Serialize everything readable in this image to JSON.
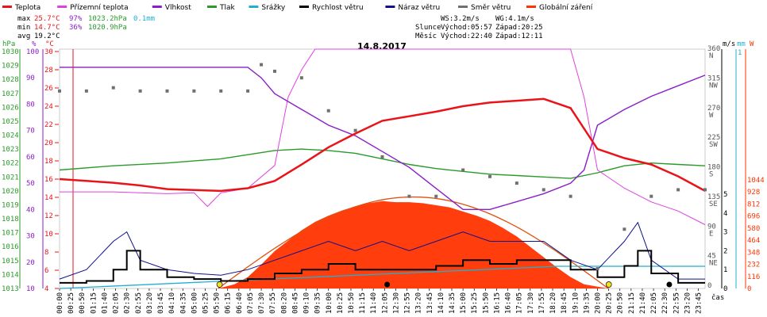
{
  "title": "14.8.2017",
  "legend": [
    {
      "label": "Teplota",
      "color": "#e8141a"
    },
    {
      "label": "Přízemní teplota",
      "color": "#e040e0"
    },
    {
      "label": "Vlhkost",
      "color": "#8a1ec8"
    },
    {
      "label": "Tlak",
      "color": "#2a9a2a"
    },
    {
      "label": "Srážky",
      "color": "#20b0d0"
    },
    {
      "label": "Rychlost větru",
      "color": "#000000"
    },
    {
      "label": "Náraz větru",
      "color": "#10108a"
    },
    {
      "label": "Směr větru",
      "color": "#707070"
    },
    {
      "label": "Globální záření",
      "color": "#ff3300"
    }
  ],
  "stats": {
    "max_label": "max",
    "max_temp": "25.7°C",
    "max_hum": "97%",
    "max_press": "1023.2hPa",
    "max_rain": "0.1mm",
    "min_label": "min",
    "min_temp": "14.7°C",
    "min_hum": "36%",
    "min_press": "1020.9hPa",
    "avg_label": "avg",
    "avg_temp": "19.2°C"
  },
  "astro": {
    "ws": "WS:3.2m/s",
    "wg": "WG:4.1m/s",
    "sun_label": "Slunce",
    "sunrise": "Východ:05:57",
    "sunset": "Západ:20:25",
    "moon_label": "Měsíc",
    "moonrise": "Východ:22:40",
    "moonset": "Západ:12:11"
  },
  "axes": {
    "hpa_unit": "hPa",
    "pct_unit": "%",
    "c_unit": "°C",
    "ms_unit": "m/s",
    "mm_unit": "mm",
    "w_unit": "W",
    "time_unit": "čas",
    "hpa_ticks": [
      "1030",
      "1029",
      "1028",
      "1027",
      "1026",
      "1025",
      "1024",
      "1023",
      "1022",
      "1021",
      "1020",
      "1019",
      "1018",
      "1017",
      "1016",
      "1015",
      "1014",
      "1013"
    ],
    "pct_ticks": [
      "100",
      "90",
      "80",
      "70",
      "60",
      "50",
      "40",
      "30",
      "20",
      "10"
    ],
    "c_ticks": [
      "30",
      "28",
      "26",
      "24",
      "22",
      "20",
      "18",
      "16",
      "14",
      "12",
      "10",
      "8",
      "6",
      "4"
    ],
    "dir_ticks": [
      [
        "360",
        "N"
      ],
      [
        "315",
        "NW"
      ],
      [
        "270",
        "W"
      ],
      [
        "225",
        "SW"
      ],
      [
        "180",
        "S"
      ],
      [
        "135",
        "SE"
      ],
      [
        "90",
        "E"
      ],
      [
        "45",
        "NE"
      ],
      [
        "0",
        ""
      ]
    ],
    "ms_ticks": [
      "5",
      "4",
      "3",
      "2",
      "1",
      "0"
    ],
    "mm_ticks": [
      "1"
    ],
    "w_ticks": [
      "1044",
      "928",
      "812",
      "696",
      "580",
      "464",
      "348",
      "232",
      "116",
      "0"
    ],
    "time_ticks": [
      "00:00",
      "00:25",
      "00:50",
      "01:15",
      "01:40",
      "02:05",
      "02:30",
      "02:55",
      "03:20",
      "03:45",
      "04:10",
      "04:35",
      "05:00",
      "05:25",
      "05:50",
      "06:15",
      "06:40",
      "07:05",
      "07:30",
      "07:55",
      "08:20",
      "08:45",
      "09:10",
      "09:35",
      "10:00",
      "10:25",
      "10:50",
      "11:15",
      "11:40",
      "12:05",
      "12:30",
      "12:55",
      "13:20",
      "13:45",
      "14:10",
      "14:35",
      "15:00",
      "15:25",
      "15:50",
      "16:15",
      "16:40",
      "17:05",
      "17:30",
      "17:55",
      "18:20",
      "18:45",
      "19:10",
      "19:35",
      "20:00",
      "20:25",
      "20:50",
      "21:15",
      "21:40",
      "22:05",
      "22:30",
      "22:55",
      "23:20",
      "23:45"
    ]
  },
  "chart_data": {
    "type": "line",
    "title": "14.8.2017",
    "x_range": [
      "00:00",
      "24:00"
    ],
    "series": [
      {
        "name": "Teplota",
        "unit": "°C",
        "x": [
          0,
          1,
          2,
          3,
          4,
          5,
          6,
          7,
          8,
          9,
          10,
          11,
          12,
          13,
          14,
          15,
          16,
          17,
          18,
          19,
          20,
          21,
          22,
          23,
          24
        ],
        "values": [
          16.0,
          15.8,
          15.6,
          15.3,
          14.9,
          14.8,
          14.7,
          15.0,
          15.8,
          17.6,
          19.5,
          21.0,
          22.4,
          22.9,
          23.4,
          24.0,
          24.4,
          24.6,
          24.8,
          23.8,
          19.3,
          18.3,
          17.6,
          16.3,
          14.7
        ]
      },
      {
        "name": "Přízemní teplota",
        "unit": "°C",
        "x": [
          0,
          1,
          2,
          3,
          4,
          5,
          5.5,
          6,
          7,
          8,
          8.5,
          9,
          9.5,
          10,
          11,
          12,
          13,
          14,
          15,
          16,
          17,
          18,
          19,
          19.5,
          20,
          21,
          22,
          23,
          24
        ],
        "values": [
          14.6,
          14.6,
          14.6,
          14.5,
          14.4,
          14.5,
          13.0,
          14.5,
          15.0,
          17.5,
          25.0,
          28.0,
          31.5,
          31.5,
          31.5,
          31.5,
          31.5,
          31.5,
          31.5,
          31.5,
          31.5,
          31.5,
          31.0,
          25.0,
          17.0,
          15.0,
          13.5,
          12.5,
          11.0
        ]
      },
      {
        "name": "Vlhkost",
        "unit": "%",
        "x": [
          0,
          1,
          2,
          3,
          4,
          5,
          6,
          7,
          7.5,
          8,
          9,
          10,
          11,
          12,
          13,
          14,
          15,
          16,
          17,
          18,
          19,
          19.5,
          20,
          21,
          22,
          23,
          24
        ],
        "values": [
          94,
          94,
          94,
          94,
          94,
          94,
          94,
          94,
          90,
          84,
          78,
          72,
          68,
          62,
          56,
          48,
          40,
          40,
          43,
          46,
          50,
          55,
          72,
          78,
          83,
          87,
          91
        ]
      },
      {
        "name": "Tlak",
        "unit": "hPa",
        "x": [
          0,
          2,
          4,
          6,
          7,
          8,
          9,
          10,
          11,
          12,
          13,
          14,
          15,
          16,
          17,
          18,
          19,
          20,
          21,
          22,
          23,
          24
        ],
        "values": [
          1021.5,
          1021.8,
          1022.0,
          1022.3,
          1022.6,
          1022.9,
          1023.0,
          1022.9,
          1022.7,
          1022.3,
          1021.9,
          1021.6,
          1021.4,
          1021.2,
          1021.1,
          1021.0,
          1020.9,
          1021.3,
          1021.8,
          1022.0,
          1021.9,
          1021.8
        ]
      },
      {
        "name": "Srážky",
        "unit": "mm",
        "x": [
          0,
          18.5,
          24
        ],
        "values": [
          0,
          0.1,
          0.1
        ]
      },
      {
        "name": "Rychlost větru",
        "unit": "m/s",
        "x": [
          0,
          1,
          2,
          2.5,
          3,
          4,
          5,
          6,
          7,
          8,
          9,
          10,
          11,
          12,
          13,
          14,
          15,
          16,
          17,
          18,
          19,
          20,
          21,
          21.5,
          22,
          23,
          24
        ],
        "values": [
          0.3,
          0.4,
          1.0,
          2.0,
          1.0,
          0.6,
          0.5,
          0.4,
          0.5,
          0.8,
          1.0,
          1.3,
          1.0,
          1.0,
          1.0,
          1.2,
          1.5,
          1.3,
          1.5,
          1.5,
          1.0,
          0.6,
          1.2,
          2.0,
          0.8,
          0.3,
          0.3
        ]
      },
      {
        "name": "Náraz větru",
        "unit": "m/s",
        "x": [
          0,
          1,
          2,
          2.5,
          3,
          4,
          5,
          6,
          7,
          8,
          9,
          10,
          11,
          12,
          13,
          14,
          15,
          16,
          17,
          18,
          19,
          20,
          21,
          21.5,
          22,
          23,
          24
        ],
        "values": [
          0.5,
          1.0,
          2.5,
          3.0,
          1.5,
          1.0,
          0.8,
          0.7,
          1.0,
          1.5,
          2.0,
          2.5,
          2.0,
          2.5,
          2.0,
          2.5,
          3.0,
          2.5,
          2.5,
          2.5,
          1.5,
          1.0,
          2.5,
          3.5,
          1.5,
          0.5,
          0.5
        ]
      },
      {
        "name": "Směr větru",
        "unit": "°",
        "x": [
          0,
          1,
          2,
          3,
          4,
          5,
          6,
          7,
          7.5,
          8,
          9,
          10,
          11,
          12,
          13,
          14,
          15,
          16,
          17,
          18,
          19,
          20,
          21,
          22,
          23,
          24
        ],
        "values": [
          300,
          300,
          305,
          300,
          300,
          300,
          300,
          300,
          340,
          330,
          320,
          270,
          240,
          200,
          140,
          140,
          180,
          170,
          160,
          150,
          140,
          30,
          90,
          140,
          150,
          150
        ]
      },
      {
        "name": "Globální záření",
        "unit": "W",
        "x": [
          0,
          5.9,
          6.5,
          7,
          7.5,
          8,
          8.5,
          9,
          9.5,
          10,
          10.5,
          11,
          11.5,
          12,
          12.5,
          13,
          13.5,
          14,
          14.5,
          15,
          15.5,
          16,
          16.5,
          17,
          17.5,
          18,
          18.5,
          19,
          19.5,
          20.4,
          24
        ],
        "values": [
          0,
          0,
          40,
          110,
          230,
          360,
          460,
          560,
          640,
          700,
          750,
          790,
          820,
          840,
          830,
          830,
          820,
          800,
          780,
          740,
          700,
          650,
          580,
          500,
          400,
          300,
          200,
          110,
          40,
          0,
          0
        ]
      }
    ]
  }
}
